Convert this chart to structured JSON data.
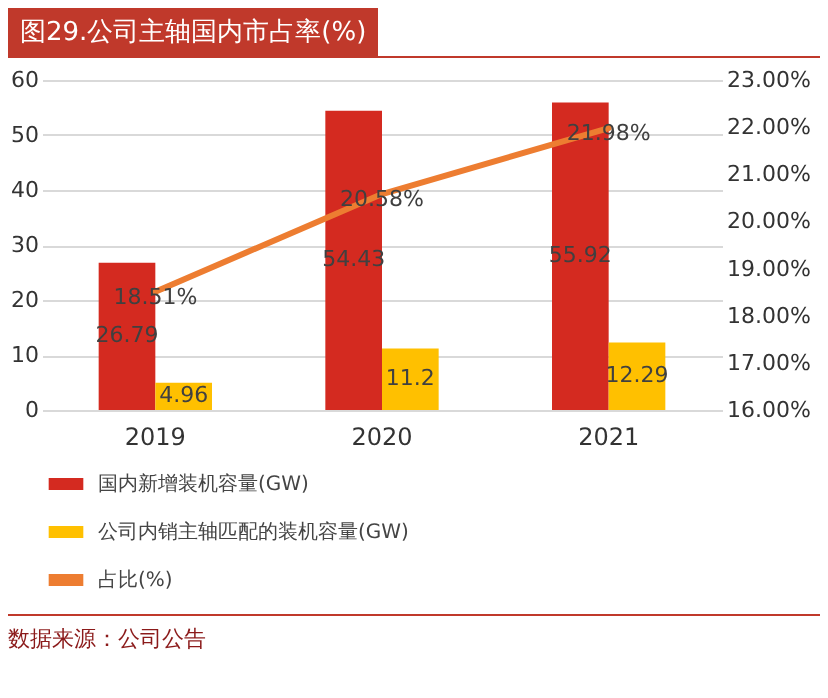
{
  "chart_data": {
    "type": "bar",
    "title": "图29.公司主轴国内市占率(%)",
    "categories": [
      "2019",
      "2020",
      "2021"
    ],
    "series": [
      {
        "name": "国内新增装机容量(GW)",
        "color": "#d42a20",
        "values": [
          26.79,
          54.43,
          55.92
        ],
        "value_labels": [
          "26.79",
          "54.43",
          "55.92"
        ]
      },
      {
        "name": "公司内销主轴匹配的装机容量(GW)",
        "color": "#ffc000",
        "values": [
          4.96,
          11.2,
          12.29
        ],
        "value_labels": [
          "4.96",
          "11.2",
          "12.29"
        ]
      },
      {
        "name": "占比(%)",
        "type": "line",
        "axis": "y2",
        "color": "#ed7d31",
        "values": [
          18.51,
          20.58,
          21.98
        ],
        "value_labels": [
          "18.51%",
          "20.58%",
          "21.98%"
        ]
      }
    ],
    "ylim": [
      0,
      60
    ],
    "yticks": [
      0,
      10,
      20,
      30,
      40,
      50,
      60
    ],
    "y2lim": [
      16,
      23
    ],
    "y2ticks": [
      {
        "value": 16,
        "label": "16.00%"
      },
      {
        "value": 17,
        "label": "17.00%"
      },
      {
        "value": 18,
        "label": "18.00%"
      },
      {
        "value": 19,
        "label": "19.00%"
      },
      {
        "value": 20,
        "label": "20.00%"
      },
      {
        "value": 21,
        "label": "21.00%"
      },
      {
        "value": 22,
        "label": "22.00%"
      },
      {
        "value": 23,
        "label": "23.00%"
      }
    ],
    "grid": "y",
    "legend": "bottom",
    "annotations": [
      "数据来源：公司公告"
    ]
  }
}
